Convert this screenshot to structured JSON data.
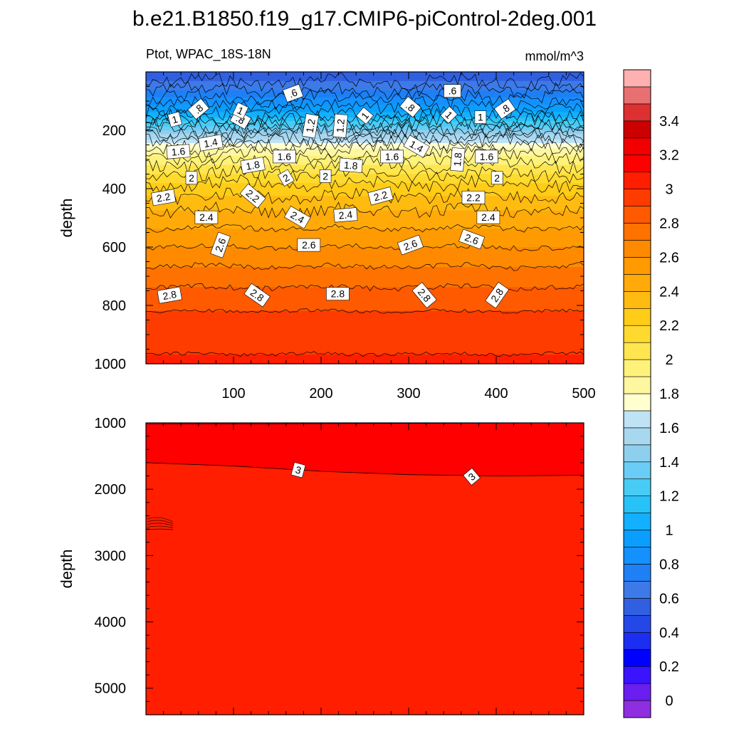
{
  "page_title": "b.e21.B1850.f19_g17.CMIP6-piControl-2deg.001",
  "chart_data": [
    {
      "type": "heatmap",
      "panel": "upper",
      "subtitle_left": "Ptot, WPAC_18S-18N",
      "subtitle_right": "mmol/m^3",
      "ylabel": "depth",
      "xlabel": "",
      "xlim": [
        0,
        500
      ],
      "ylim": [
        1000,
        0
      ],
      "x_ticks": [
        100,
        200,
        300,
        400,
        500
      ],
      "x_tick_labels": [
        "100",
        "200",
        "300",
        "400",
        "500"
      ],
      "y_ticks": [
        200,
        400,
        600,
        800,
        1000
      ],
      "y_tick_labels": [
        "200",
        "400",
        "600",
        "800",
        "1000"
      ],
      "contour_interval": 0.2,
      "field_profile": [
        {
          "depth": 0,
          "value": 0.5
        },
        {
          "depth": 50,
          "value": 0.65
        },
        {
          "depth": 100,
          "value": 0.85
        },
        {
          "depth": 150,
          "value": 1.05
        },
        {
          "depth": 200,
          "value": 1.4
        },
        {
          "depth": 250,
          "value": 1.75
        },
        {
          "depth": 300,
          "value": 1.95
        },
        {
          "depth": 350,
          "value": 2.1
        },
        {
          "depth": 400,
          "value": 2.25
        },
        {
          "depth": 450,
          "value": 2.35
        },
        {
          "depth": 500,
          "value": 2.45
        },
        {
          "depth": 550,
          "value": 2.52
        },
        {
          "depth": 600,
          "value": 2.6
        },
        {
          "depth": 700,
          "value": 2.75
        },
        {
          "depth": 800,
          "value": 2.88
        },
        {
          "depth": 850,
          "value": 2.93
        },
        {
          "depth": 1000,
          "value": 3.02
        }
      ],
      "contour_labels": [
        {
          "x": 168,
          "depth": 73,
          "text": ".6",
          "angle": -20
        },
        {
          "x": 350,
          "depth": 65,
          "text": ".6",
          "angle": 0
        },
        {
          "x": 33,
          "depth": 163,
          "text": "1",
          "angle": -15
        },
        {
          "x": 60,
          "depth": 127,
          "text": ".8",
          "angle": -40
        },
        {
          "x": 108,
          "depth": 163,
          "text": ".8",
          "angle": 30
        },
        {
          "x": 108,
          "depth": 133,
          "text": "1",
          "angle": 25
        },
        {
          "x": 188,
          "depth": 185,
          "text": "1.2",
          "angle": -80
        },
        {
          "x": 222,
          "depth": 185,
          "text": "1.2",
          "angle": -85
        },
        {
          "x": 250,
          "depth": 150,
          "text": "1",
          "angle": -50
        },
        {
          "x": 302,
          "depth": 120,
          "text": ".8",
          "angle": 40
        },
        {
          "x": 346,
          "depth": 147,
          "text": "1",
          "angle": 45
        },
        {
          "x": 382,
          "depth": 155,
          "text": "1",
          "angle": 0
        },
        {
          "x": 410,
          "depth": 127,
          "text": ".8",
          "angle": -35
        },
        {
          "x": 74,
          "depth": 243,
          "text": "1.4",
          "angle": -10
        },
        {
          "x": 37,
          "depth": 273,
          "text": "1.6",
          "angle": -5
        },
        {
          "x": 158,
          "depth": 290,
          "text": "1.6",
          "angle": 0
        },
        {
          "x": 122,
          "depth": 320,
          "text": "1.8",
          "angle": -10
        },
        {
          "x": 234,
          "depth": 320,
          "text": "1.8",
          "angle": 5
        },
        {
          "x": 281,
          "depth": 290,
          "text": "1.6",
          "angle": 0
        },
        {
          "x": 309,
          "depth": 255,
          "text": "1.4",
          "angle": 30
        },
        {
          "x": 356,
          "depth": 300,
          "text": "1.8",
          "angle": -85
        },
        {
          "x": 389,
          "depth": 290,
          "text": "1.6",
          "angle": 0
        },
        {
          "x": 52,
          "depth": 363,
          "text": "2",
          "angle": 0
        },
        {
          "x": 160,
          "depth": 363,
          "text": "2",
          "angle": -30
        },
        {
          "x": 205,
          "depth": 357,
          "text": "2",
          "angle": 0
        },
        {
          "x": 401,
          "depth": 363,
          "text": "2",
          "angle": 0
        },
        {
          "x": 20,
          "depth": 430,
          "text": "2.2",
          "angle": -10
        },
        {
          "x": 122,
          "depth": 425,
          "text": "2.2",
          "angle": 40
        },
        {
          "x": 268,
          "depth": 425,
          "text": "2.2",
          "angle": -15
        },
        {
          "x": 374,
          "depth": 430,
          "text": "2.2",
          "angle": 0
        },
        {
          "x": 69,
          "depth": 498,
          "text": "2.4",
          "angle": 0
        },
        {
          "x": 173,
          "depth": 498,
          "text": "2.4",
          "angle": 30
        },
        {
          "x": 228,
          "depth": 490,
          "text": "2.4",
          "angle": -5
        },
        {
          "x": 391,
          "depth": 498,
          "text": "2.4",
          "angle": 0
        },
        {
          "x": 85,
          "depth": 593,
          "text": "2.6",
          "angle": -70
        },
        {
          "x": 186,
          "depth": 593,
          "text": "2.6",
          "angle": 0
        },
        {
          "x": 302,
          "depth": 593,
          "text": "2.6",
          "angle": -20
        },
        {
          "x": 372,
          "depth": 573,
          "text": "2.6",
          "angle": 20
        },
        {
          "x": 27,
          "depth": 765,
          "text": "2.8",
          "angle": -10
        },
        {
          "x": 127,
          "depth": 765,
          "text": "2.8",
          "angle": 35
        },
        {
          "x": 219,
          "depth": 760,
          "text": "2.8",
          "angle": 0
        },
        {
          "x": 318,
          "depth": 765,
          "text": "2.8",
          "angle": 50
        },
        {
          "x": 401,
          "depth": 765,
          "text": "2.8",
          "angle": -55
        }
      ]
    },
    {
      "type": "heatmap",
      "panel": "lower",
      "ylabel": "depth",
      "xlabel": "",
      "xlim": [
        0,
        500
      ],
      "ylim": [
        5400,
        1000
      ],
      "y_ticks": [
        1000,
        2000,
        3000,
        4000,
        5000
      ],
      "y_tick_labels": [
        "1000",
        "2000",
        "3000",
        "4000",
        "5000"
      ],
      "fill_upper_value": 3.1,
      "fill_value": 3.05,
      "contour_3_line": [
        {
          "x": 0,
          "depth": 1600
        },
        {
          "x": 100,
          "depth": 1650
        },
        {
          "x": 200,
          "depth": 1730
        },
        {
          "x": 300,
          "depth": 1780
        },
        {
          "x": 400,
          "depth": 1800
        },
        {
          "x": 500,
          "depth": 1790
        }
      ],
      "contour_labels": [
        {
          "x": 174,
          "depth": 1710,
          "text": "3",
          "angle": 15
        },
        {
          "x": 372,
          "depth": 1810,
          "text": "3",
          "angle": -40
        }
      ]
    }
  ],
  "colorbar": {
    "levels": [
      -0.1,
      0,
      0.1,
      0.2,
      0.3,
      0.4,
      0.5,
      0.6,
      0.7,
      0.8,
      0.9,
      1.0,
      1.1,
      1.2,
      1.3,
      1.4,
      1.5,
      1.6,
      1.7,
      1.8,
      1.9,
      2.0,
      2.1,
      2.2,
      2.3,
      2.4,
      2.5,
      2.6,
      2.7,
      2.8,
      2.9,
      3.0,
      3.1,
      3.2,
      3.3,
      3.4,
      3.5,
      3.6
    ],
    "colors": [
      "#8f2ee0",
      "#6a1ef0",
      "#3a14ff",
      "#0000ff",
      "#1c2ef2",
      "#2448e8",
      "#3060e0",
      "#3d7ae8",
      "#1f7ff5",
      "#1490ff",
      "#0a9eff",
      "#12b0ff",
      "#26c2f8",
      "#48ccf5",
      "#6acdf5",
      "#8ecfee",
      "#a8d8f0",
      "#bfe2f4",
      "#ffffd0",
      "#fff7a0",
      "#fff27a",
      "#ffe650",
      "#ffda2e",
      "#ffcc18",
      "#ffbb10",
      "#ffaa08",
      "#ff9a00",
      "#ff8a00",
      "#ff7200",
      "#ff5a00",
      "#ff3c00",
      "#ff1e00",
      "#ff0000",
      "#f20000",
      "#cc0000",
      "#dd3030",
      "#e87070",
      "#ffb0b0"
    ],
    "tick_labels": [
      "0",
      "0.2",
      "0.4",
      "0.6",
      "0.8",
      "1",
      "1.2",
      "1.4",
      "1.6",
      "1.8",
      "2",
      "2.2",
      "2.4",
      "2.6",
      "2.8",
      "3",
      "3.2",
      "3.4"
    ]
  }
}
